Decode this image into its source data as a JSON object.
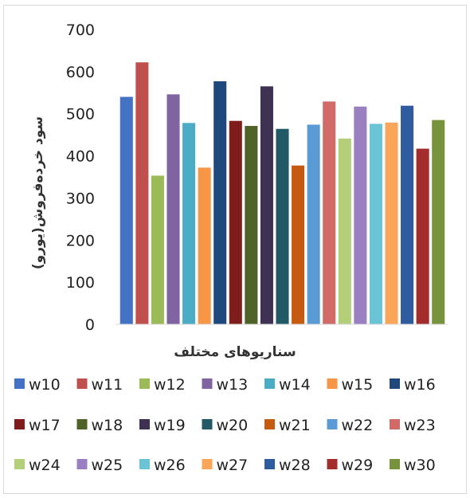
{
  "chart_data": {
    "type": "bar",
    "title": "",
    "xlabel": "سناریوهای مختلف",
    "ylabel": "سود خرده‌فروش(یورو)",
    "ylim": [
      0,
      700
    ],
    "yticks": [
      0,
      100,
      200,
      300,
      400,
      500,
      600,
      700
    ],
    "grid": false,
    "legend_position": "bottom",
    "series": [
      {
        "name": "w10",
        "values": [
          540
        ],
        "color": "#4472C4"
      },
      {
        "name": "w11",
        "values": [
          622
        ],
        "color": "#C0504D"
      },
      {
        "name": "w12",
        "values": [
          353
        ],
        "color": "#9BBB59"
      },
      {
        "name": "w13",
        "values": [
          546
        ],
        "color": "#8064A2"
      },
      {
        "name": "w14",
        "values": [
          478
        ],
        "color": "#4BACC6"
      },
      {
        "name": "w15",
        "values": [
          372
        ],
        "color": "#F79646"
      },
      {
        "name": "w16",
        "values": [
          577
        ],
        "color": "#1F497D"
      },
      {
        "name": "w17",
        "values": [
          483
        ],
        "color": "#7F1D1D"
      },
      {
        "name": "w18",
        "values": [
          471
        ],
        "color": "#4F6228"
      },
      {
        "name": "w19",
        "values": [
          565
        ],
        "color": "#3F3151"
      },
      {
        "name": "w20",
        "values": [
          464
        ],
        "color": "#215967"
      },
      {
        "name": "w21",
        "values": [
          377
        ],
        "color": "#C55A11"
      },
      {
        "name": "w22",
        "values": [
          474
        ],
        "color": "#5B9BD5"
      },
      {
        "name": "w23",
        "values": [
          529
        ],
        "color": "#D26B68"
      },
      {
        "name": "w24",
        "values": [
          441
        ],
        "color": "#B3CF7A"
      },
      {
        "name": "w25",
        "values": [
          517
        ],
        "color": "#9A7FC1"
      },
      {
        "name": "w26",
        "values": [
          476
        ],
        "color": "#6BC4D6"
      },
      {
        "name": "w27",
        "values": [
          479
        ],
        "color": "#F9A65A"
      },
      {
        "name": "w28",
        "values": [
          519
        ],
        "color": "#2E5C9E"
      },
      {
        "name": "w29",
        "values": [
          417
        ],
        "color": "#A32D2D"
      },
      {
        "name": "w30",
        "values": [
          485
        ],
        "color": "#77933C"
      }
    ]
  }
}
